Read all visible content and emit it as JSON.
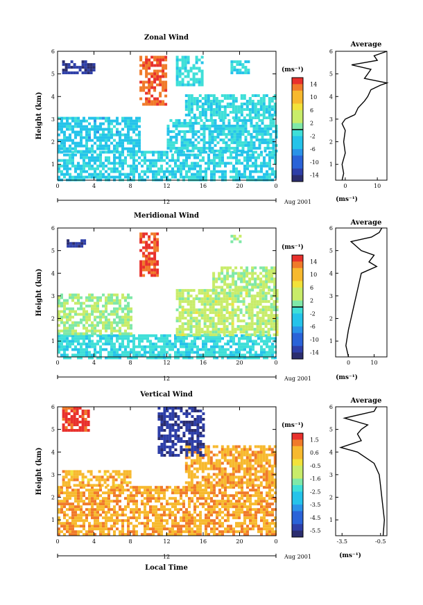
{
  "x_axis_title": "Local Time",
  "chart_data": [
    {
      "type": "heatmap",
      "title": "Zonal Wind",
      "ylabel": "Height (km)",
      "xlabel": "Local Time",
      "xlim": [
        0,
        24
      ],
      "ylim": [
        0.3,
        6
      ],
      "x_ticks": [
        "0",
        "4",
        "8",
        "12",
        "16",
        "20",
        "0"
      ],
      "y_ticks": [
        "1",
        "2",
        "3",
        "4",
        "5",
        "6"
      ],
      "date_bar": {
        "label": "12",
        "date": "Aug 2001"
      },
      "colorbar": {
        "unit": "(ms⁻¹)",
        "ticks": [
          "14",
          "10",
          "6",
          "2",
          "-2",
          "-6",
          "-10",
          "-14"
        ],
        "range": [
          -16,
          16
        ],
        "highlight": "0"
      },
      "regions": [
        {
          "t0": 0,
          "t1": 24,
          "h0": 0.3,
          "h1": 1.6,
          "value": -3
        },
        {
          "t0": 0,
          "t1": 9,
          "h0": 1.6,
          "h1": 3.1,
          "value": -4
        },
        {
          "t0": 12,
          "t1": 24,
          "h0": 1.6,
          "h1": 3.0,
          "value": -3
        },
        {
          "t0": 14,
          "t1": 24,
          "h0": 3.0,
          "h1": 4.1,
          "value": -2
        },
        {
          "t0": 13,
          "t1": 16,
          "h0": 4.5,
          "h1": 5.8,
          "value": -2
        },
        {
          "t0": 9,
          "t1": 12,
          "h0": 3.7,
          "h1": 5.8,
          "value": 14
        },
        {
          "t0": 19,
          "t1": 21,
          "h0": 5.1,
          "h1": 5.6,
          "value": -3
        },
        {
          "t0": 0.5,
          "t1": 4,
          "h0": 5.1,
          "h1": 5.6,
          "value": -14
        }
      ],
      "profile": {
        "title": "Average",
        "xlabel": "(ms⁻¹)",
        "xlim": [
          -3,
          13
        ],
        "x_ticks": [
          "0",
          "10"
        ],
        "heights": [
          0.3,
          0.6,
          1.0,
          1.5,
          2.0,
          2.5,
          2.8,
          3.0,
          3.2,
          3.5,
          3.8,
          4.0,
          4.3,
          4.5,
          4.6,
          4.8,
          5.0,
          5.2,
          5.4,
          5.6,
          5.8,
          6.0
        ],
        "values": [
          -1,
          -0.5,
          -1,
          0,
          -0.5,
          0,
          -1,
          0,
          3,
          4,
          6,
          7,
          8,
          11,
          13,
          6,
          7,
          8,
          2,
          10,
          9,
          13
        ]
      }
    },
    {
      "type": "heatmap",
      "title": "Meridional Wind",
      "ylabel": "Height (km)",
      "xlabel": "Local Time",
      "xlim": [
        0,
        24
      ],
      "ylim": [
        0.3,
        6
      ],
      "x_ticks": [
        "0",
        "4",
        "8",
        "12",
        "16",
        "20",
        "0"
      ],
      "y_ticks": [
        "1",
        "2",
        "3",
        "4",
        "5",
        "6"
      ],
      "date_bar": {
        "label": "12",
        "date": "Aug 2001"
      },
      "colorbar": {
        "unit": "(ms⁻¹)",
        "ticks": [
          "14",
          "10",
          "6",
          "2",
          "-2",
          "-6",
          "-10",
          "-14"
        ],
        "range": [
          -16,
          16
        ],
        "highlight": "0"
      },
      "regions": [
        {
          "t0": 0,
          "t1": 24,
          "h0": 0.3,
          "h1": 1.3,
          "value": -2
        },
        {
          "t0": 0,
          "t1": 8,
          "h0": 1.3,
          "h1": 3.1,
          "value": 3
        },
        {
          "t0": 13,
          "t1": 24,
          "h0": 1.3,
          "h1": 3.3,
          "value": 4
        },
        {
          "t0": 17,
          "t1": 24,
          "h0": 3.3,
          "h1": 4.3,
          "value": 3
        },
        {
          "t0": 9,
          "t1": 11,
          "h0": 3.9,
          "h1": 5.8,
          "value": 15
        },
        {
          "t0": 1,
          "t1": 3,
          "h0": 5.2,
          "h1": 5.5,
          "value": -14
        },
        {
          "t0": 19,
          "t1": 20,
          "h0": 5.4,
          "h1": 5.7,
          "value": 2
        }
      ],
      "profile": {
        "title": "Average",
        "xlabel": "(ms⁻¹)",
        "xlim": [
          -5,
          15
        ],
        "x_ticks": [
          "0",
          "10"
        ],
        "heights": [
          0.3,
          0.8,
          1.5,
          2.0,
          2.5,
          3.0,
          3.5,
          4.0,
          4.3,
          4.5,
          4.8,
          5.0,
          5.2,
          5.4,
          5.6,
          5.8,
          6.0
        ],
        "values": [
          0,
          -1,
          0,
          1,
          2,
          3,
          4,
          5,
          11,
          8,
          10,
          5,
          3,
          1,
          9,
          12,
          13
        ]
      }
    },
    {
      "type": "heatmap",
      "title": "Vertical Wind",
      "ylabel": "Height (km)",
      "xlabel": "Local Time",
      "xlim": [
        0,
        24
      ],
      "ylim": [
        0.3,
        6
      ],
      "x_ticks": [
        "0",
        "4",
        "8",
        "12",
        "16",
        "20",
        "0"
      ],
      "y_ticks": [
        "1",
        "2",
        "3",
        "4",
        "5",
        "6"
      ],
      "date_bar": {
        "label": "12",
        "date": "Aug 2001"
      },
      "colorbar": {
        "unit": "(ms⁻¹)",
        "ticks": [
          "1.5",
          "0.6",
          "-0.5",
          "-1.6",
          "-2.5",
          "-3.5",
          "-4.5",
          "-5.5"
        ],
        "range": [
          -6,
          2
        ],
        "highlight": ""
      },
      "regions": [
        {
          "t0": 0,
          "t1": 24,
          "h0": 0.3,
          "h1": 2.5,
          "value": 0.8
        },
        {
          "t0": 0.5,
          "t1": 8,
          "h0": 2.5,
          "h1": 3.2,
          "value": 0.6
        },
        {
          "t0": 14,
          "t1": 24,
          "h0": 2.5,
          "h1": 4.3,
          "value": 0.7
        },
        {
          "t0": 11,
          "t1": 16,
          "h0": 3.8,
          "h1": 6.0,
          "value": -5.5
        },
        {
          "t0": 0.5,
          "t1": 3.5,
          "h0": 5.0,
          "h1": 6.0,
          "value": 1.8
        }
      ],
      "profile": {
        "title": "Average",
        "xlabel": "(ms⁻¹)",
        "xlim": [
          -4,
          0
        ],
        "x_ticks": [
          "-3.5",
          "-0.5"
        ],
        "heights": [
          0.3,
          1.0,
          2.0,
          2.5,
          3.0,
          3.5,
          4.0,
          4.2,
          4.5,
          4.8,
          5.0,
          5.2,
          5.5,
          5.8,
          6.0
        ],
        "values": [
          -0.3,
          -0.2,
          -0.4,
          -0.5,
          -0.6,
          -1.0,
          -2.3,
          -3.6,
          -2.0,
          -2.3,
          -2.0,
          -1.5,
          -3.3,
          -1.0,
          -0.8
        ]
      }
    }
  ]
}
